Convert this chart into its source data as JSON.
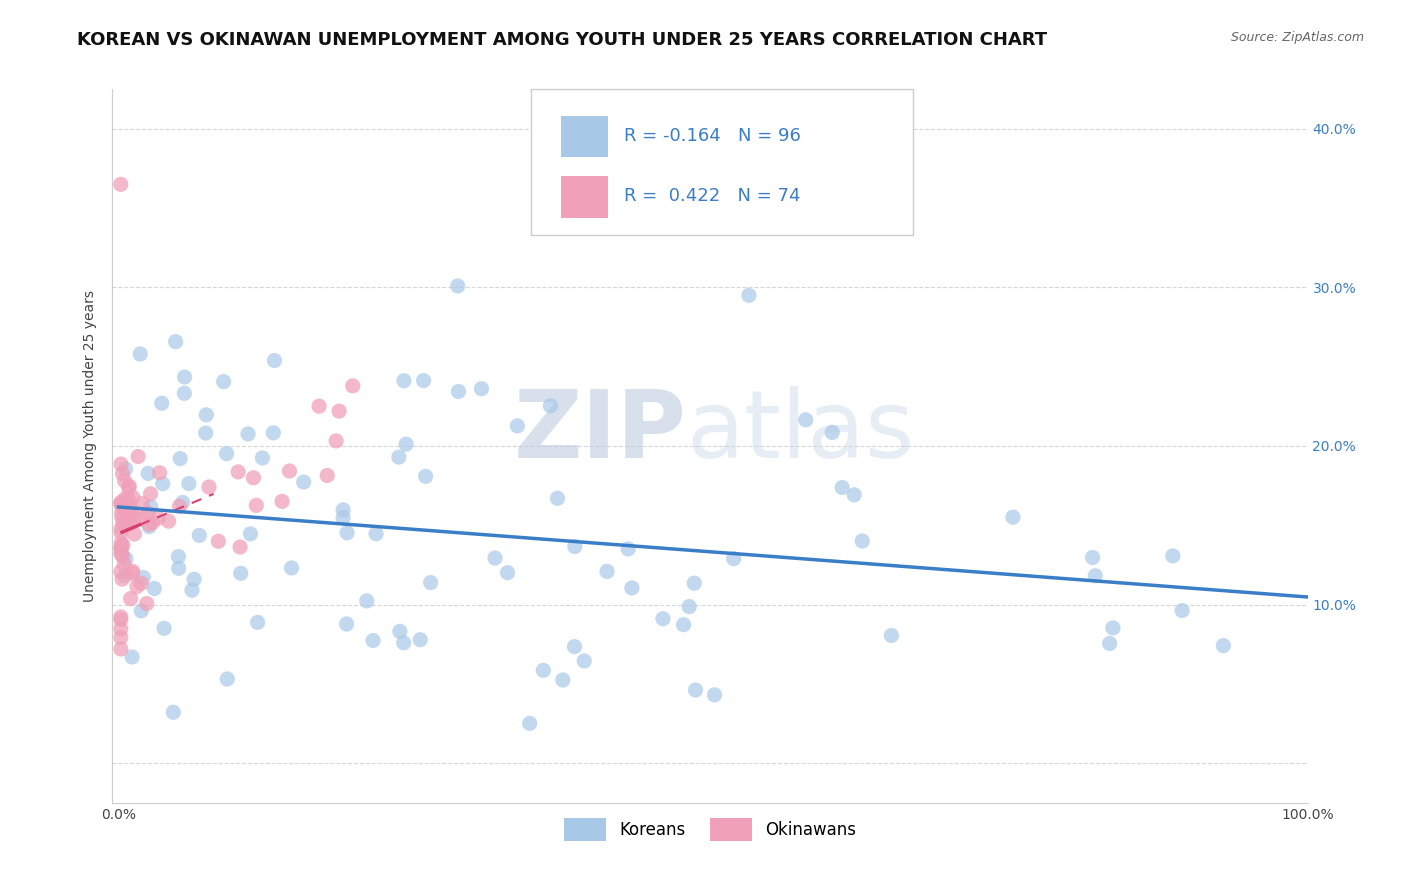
{
  "title": "KOREAN VS OKINAWAN UNEMPLOYMENT AMONG YOUTH UNDER 25 YEARS CORRELATION CHART",
  "source": "Source: ZipAtlas.com",
  "ylabel": "Unemployment Among Youth under 25 years",
  "xlim": [
    -0.005,
    1.0
  ],
  "ylim": [
    -0.025,
    0.425
  ],
  "yticks": [
    0.0,
    0.1,
    0.2,
    0.3,
    0.4
  ],
  "ytick_labels_left": [
    "",
    "",
    "",
    "",
    ""
  ],
  "ytick_labels_right": [
    "",
    "10.0%",
    "20.0%",
    "30.0%",
    "40.0%"
  ],
  "xticks": [
    0.0,
    0.25,
    0.5,
    0.75,
    1.0
  ],
  "xtick_labels": [
    "0.0%",
    "",
    "",
    "",
    "100.0%"
  ],
  "korean_color": "#a8c8e8",
  "okinawan_color": "#f0a0b8",
  "korean_line_color": "#3a7ec8",
  "okinawan_line_color": "#d84070",
  "korean_R": -0.164,
  "korean_N": 96,
  "okinawan_R": 0.422,
  "okinawan_N": 74,
  "watermark_zip": "ZIP",
  "watermark_atlas": "atlas",
  "watermark_color": "#c8d4e8",
  "title_fontsize": 13,
  "axis_label_fontsize": 10,
  "tick_fontsize": 10,
  "legend_fontsize": 13
}
